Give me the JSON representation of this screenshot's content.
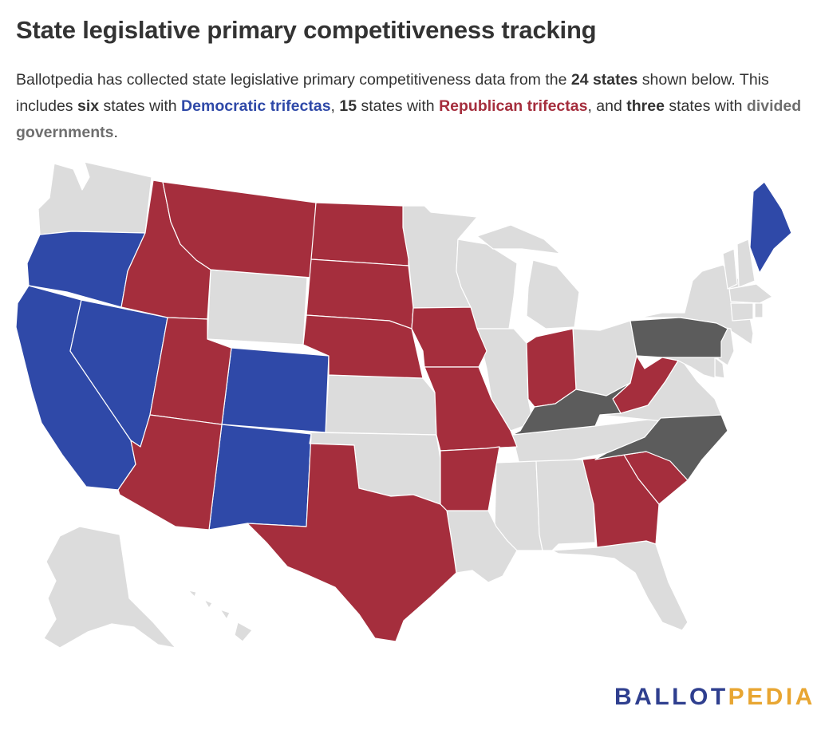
{
  "title": "State legislative primary competitiveness tracking",
  "subtitle": {
    "p1": "Ballotpedia has collected state legislative primary competitiveness data from the ",
    "count_total": "24 states",
    "p2": " shown below. This includes ",
    "count_dem": "six",
    "p3": " states with ",
    "dem_label": "Democratic trifectas",
    "p4": ", ",
    "count_rep": "15",
    "p5": " states with ",
    "rep_label": "Republican trifectas",
    "p6": ", and ",
    "count_div": "three",
    "p7": " states with ",
    "div_label": "divided governments",
    "p8": "."
  },
  "colors": {
    "democratic": "#2f49a8",
    "republican": "#a52e3d",
    "divided": "#5c5c5c",
    "not_tracked": "#dcdcdc",
    "border": "#ffffff"
  },
  "map": {
    "democratic_trifecta": [
      "Oregon",
      "California",
      "Nevada",
      "Colorado",
      "New Mexico",
      "Maine"
    ],
    "republican_trifecta": [
      "Idaho",
      "Montana",
      "North Dakota",
      "South Dakota",
      "Nebraska",
      "Iowa",
      "Missouri",
      "Arkansas",
      "Utah",
      "Arizona",
      "Texas",
      "Indiana",
      "West Virginia",
      "Georgia",
      "South Carolina"
    ],
    "divided_government": [
      "Pennsylvania",
      "Kentucky",
      "North Carolina"
    ]
  },
  "logo": {
    "part1": "BALLOT",
    "part2": "PEDIA"
  }
}
